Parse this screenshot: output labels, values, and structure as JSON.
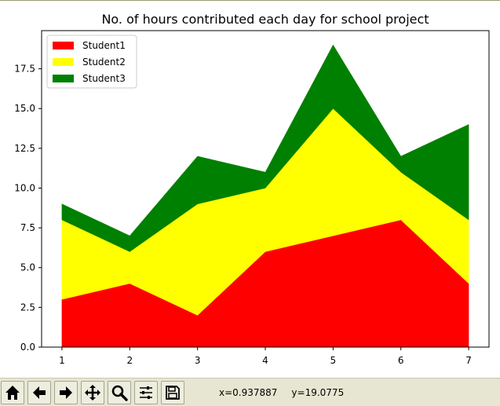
{
  "chart_data": {
    "type": "area",
    "stacked": true,
    "title": "No. of hours contributed each day for school project",
    "xlabel": "",
    "ylabel": "",
    "x": [
      1,
      2,
      3,
      4,
      5,
      6,
      7
    ],
    "series": [
      {
        "name": "Student1",
        "color": "#ff0000",
        "values": [
          3,
          4,
          2,
          6,
          7,
          8,
          4
        ]
      },
      {
        "name": "Student2",
        "color": "#ffff00",
        "values": [
          5,
          2,
          7,
          4,
          8,
          3,
          4
        ]
      },
      {
        "name": "Student3",
        "color": "#008000",
        "values": [
          1,
          1,
          3,
          1,
          4,
          1,
          6
        ]
      }
    ],
    "xlim": [
      0.7,
      7.3
    ],
    "ylim": [
      0,
      19.9
    ],
    "xticks": [
      "1",
      "2",
      "3",
      "4",
      "5",
      "6",
      "7"
    ],
    "yticks": [
      "0.0",
      "2.5",
      "5.0",
      "7.5",
      "10.0",
      "12.5",
      "15.0",
      "17.5"
    ],
    "ytick_values": [
      0,
      2.5,
      5,
      7.5,
      10,
      12.5,
      15,
      17.5
    ],
    "grid": false,
    "legend_position": "top-left"
  },
  "toolbar": {
    "buttons": [
      {
        "name": "home-button",
        "icon": "home-icon"
      },
      {
        "name": "back-button",
        "icon": "arrow-left-icon"
      },
      {
        "name": "forward-button",
        "icon": "arrow-right-icon"
      },
      {
        "name": "pan-button",
        "icon": "move-icon"
      },
      {
        "name": "zoom-button",
        "icon": "magnifier-icon"
      },
      {
        "name": "configure-subplots-button",
        "icon": "sliders-icon"
      },
      {
        "name": "save-button",
        "icon": "floppy-disk-icon"
      }
    ],
    "coords": {
      "x": "x=0.937887",
      "y": "y=19.0775"
    }
  }
}
